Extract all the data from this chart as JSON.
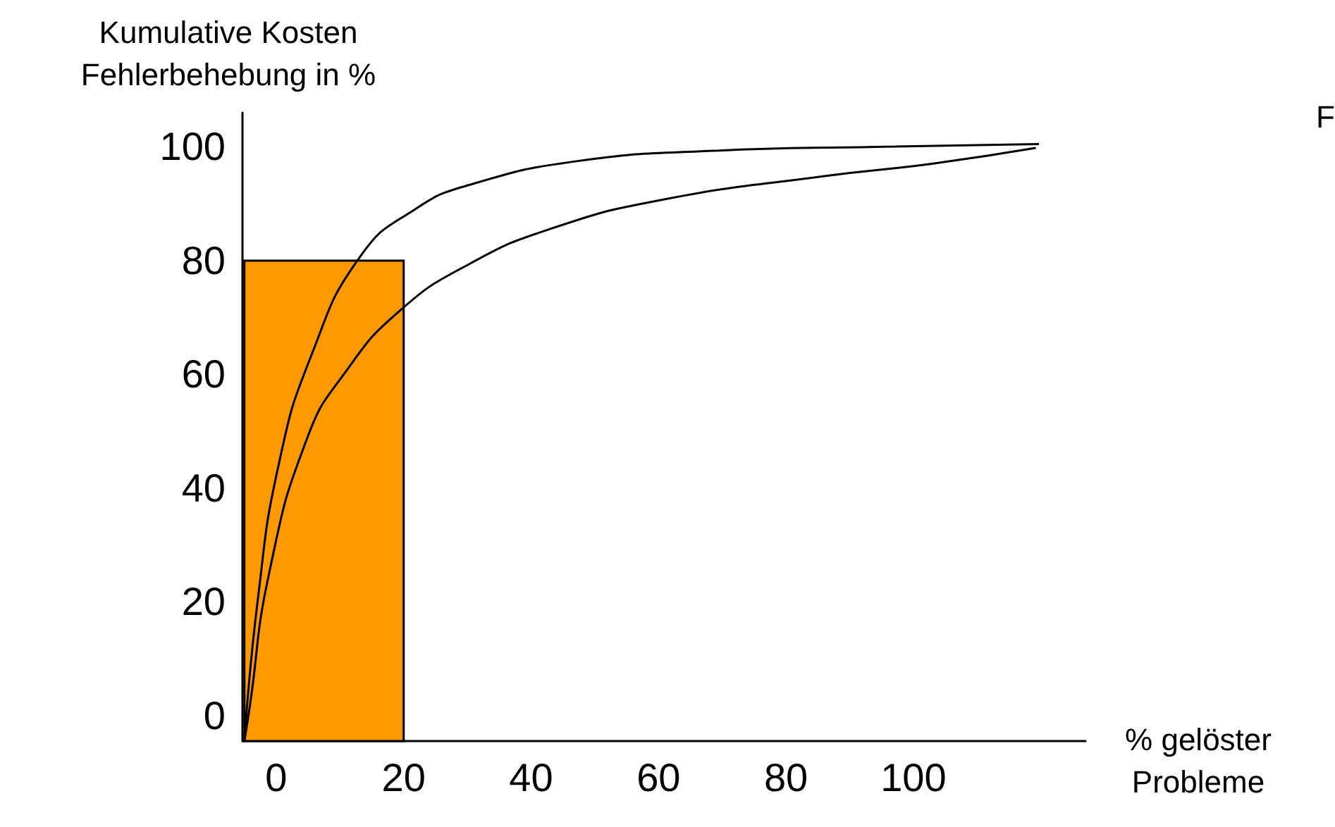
{
  "chart_data": {
    "type": "line",
    "xlabel": "% gelöster\nProbleme",
    "ylabel": "Kumulative Kosten\nFehlerbehebung in %",
    "annotations": [
      "F"
    ],
    "xlim": [
      -5.3,
      127
    ],
    "ylim": [
      -4.5,
      106
    ],
    "xticks": [
      0,
      20,
      40,
      60,
      80,
      100
    ],
    "yticks": [
      0,
      20,
      40,
      60,
      80,
      100
    ],
    "grid": false,
    "marker": "none",
    "line_style": "solid",
    "series": [
      {
        "type": "bar",
        "color": "#ff9900",
        "x": [
          7.5
        ],
        "base": [
          -4.5
        ],
        "values": [
          84.5
        ]
      },
      {
        "color": "#000000",
        "x": [
          -5,
          -2.9,
          0.4,
          5.5,
          13.3,
          21.9,
          30.3,
          47.3,
          68.6,
          94,
          119.7
        ],
        "values": [
          -4.5,
          20.3,
          44.2,
          63.3,
          80.9,
          89.1,
          93.3,
          97.5,
          99.3,
          100,
          100.5
        ]
      },
      {
        "color": "#000000",
        "x": [
          -5,
          -4.2,
          -1.1,
          4.9,
          10.8,
          19.2,
          30.3,
          43.1,
          60.2,
          85.6,
          102.7,
          119.2
        ],
        "values": [
          -4.5,
          1.2,
          25.1,
          48.9,
          60.3,
          71,
          79.4,
          85.6,
          90.6,
          94.8,
          97,
          99.8
        ]
      }
    ]
  }
}
